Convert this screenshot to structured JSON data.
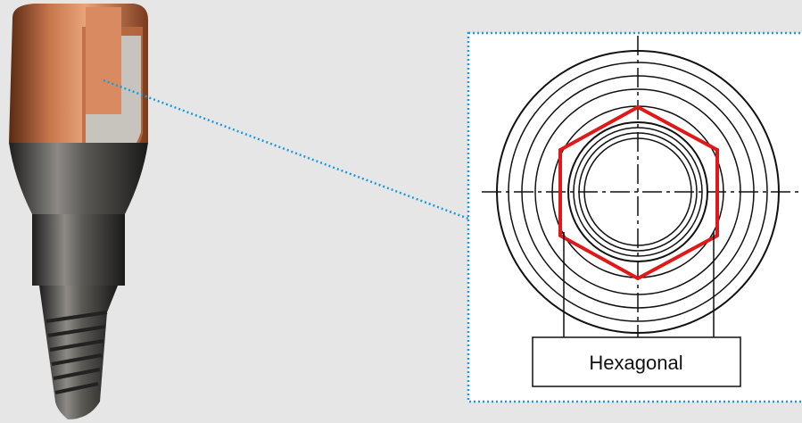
{
  "callout": {
    "label": "Hexagonal"
  }
}
